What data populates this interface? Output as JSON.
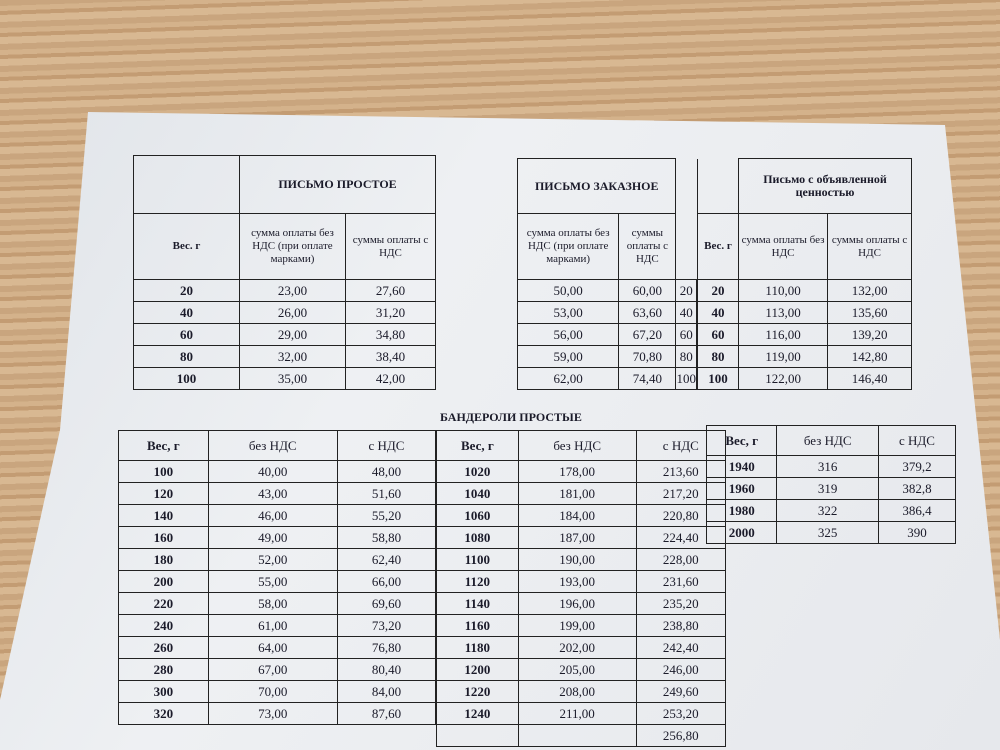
{
  "simple_letter": {
    "title": "ПИСЬМО ПРОСТОЕ",
    "col_weight": "Вес. г",
    "col_no_vat": "сумма оплаты без НДС (при оплате марками)",
    "col_vat": "суммы оплаты с НДС",
    "rows": [
      [
        "20",
        "23,00",
        "27,60"
      ],
      [
        "40",
        "26,00",
        "31,20"
      ],
      [
        "60",
        "29,00",
        "34,80"
      ],
      [
        "80",
        "32,00",
        "38,40"
      ],
      [
        "100",
        "35,00",
        "42,00"
      ]
    ]
  },
  "registered_letter": {
    "title": "ПИСЬМО ЗАКАЗНОЕ",
    "col_no_vat": "сумма оплаты без НДС (при оплате марками)",
    "col_vat": "суммы оплаты с НДС",
    "col_weight": "Вес. г",
    "rows": [
      [
        "50,00",
        "60,00",
        "20"
      ],
      [
        "53,00",
        "63,60",
        "40"
      ],
      [
        "56,00",
        "67,20",
        "60"
      ],
      [
        "59,00",
        "70,80",
        "80"
      ],
      [
        "62,00",
        "74,40",
        "100"
      ]
    ]
  },
  "declared_value_letter": {
    "title": "Письмо с объявленной ценностью",
    "col_no_vat": "сумма оплаты без НДС",
    "col_vat": "суммы оплаты с НДС",
    "rows": [
      [
        "110,00",
        "132,00"
      ],
      [
        "113,00",
        "135,60"
      ],
      [
        "116,00",
        "139,20"
      ],
      [
        "119,00",
        "142,80"
      ],
      [
        "122,00",
        "146,40"
      ]
    ]
  },
  "parcels": {
    "title": "БАНДЕРОЛИ ПРОСТЫЕ",
    "col_weight": "Вес, г",
    "col_no_vat": "без НДС",
    "col_vat": "с НДС",
    "group1": [
      [
        "100",
        "40,00",
        "48,00"
      ],
      [
        "120",
        "43,00",
        "51,60"
      ],
      [
        "140",
        "46,00",
        "55,20"
      ],
      [
        "160",
        "49,00",
        "58,80"
      ],
      [
        "180",
        "52,00",
        "62,40"
      ],
      [
        "200",
        "55,00",
        "66,00"
      ],
      [
        "220",
        "58,00",
        "69,60"
      ],
      [
        "240",
        "61,00",
        "73,20"
      ],
      [
        "260",
        "64,00",
        "76,80"
      ],
      [
        "280",
        "67,00",
        "80,40"
      ],
      [
        "300",
        "70,00",
        "84,00"
      ],
      [
        "320",
        "73,00",
        "87,60"
      ]
    ],
    "group2": [
      [
        "1020",
        "178,00",
        "213,60"
      ],
      [
        "1040",
        "181,00",
        "217,20"
      ],
      [
        "1060",
        "184,00",
        "220,80"
      ],
      [
        "1080",
        "187,00",
        "224,40"
      ],
      [
        "1100",
        "190,00",
        "228,00"
      ],
      [
        "1120",
        "193,00",
        "231,60"
      ],
      [
        "1140",
        "196,00",
        "235,20"
      ],
      [
        "1160",
        "199,00",
        "238,80"
      ],
      [
        "1180",
        "202,00",
        "242,40"
      ],
      [
        "1200",
        "205,00",
        "246,00"
      ],
      [
        "1220",
        "208,00",
        "249,60"
      ],
      [
        "1240",
        "211,00",
        "253,20"
      ],
      [
        "",
        "",
        "256,80"
      ]
    ],
    "group3": [
      [
        "1940",
        "316",
        "379,2"
      ],
      [
        "1960",
        "319",
        "382,8"
      ],
      [
        "1980",
        "322",
        "386,4"
      ],
      [
        "2000",
        "325",
        "390"
      ]
    ]
  }
}
